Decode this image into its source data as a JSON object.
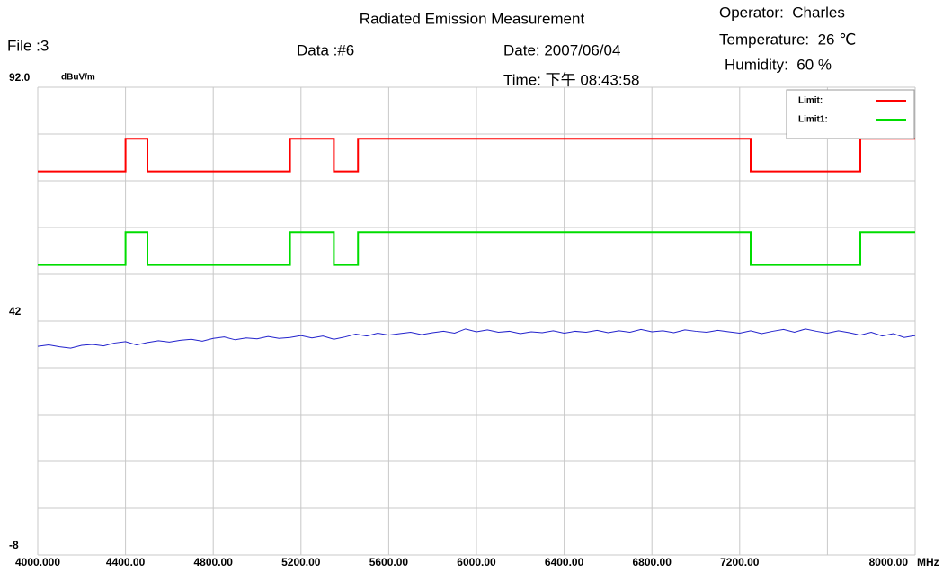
{
  "header": {
    "title": "Radiated Emission Measurement",
    "file": "File :3",
    "data": "Data :#6",
    "date": "Date: 2007/06/04",
    "time": "Time: 下午 08:43:58",
    "operator": "Operator:  Charles",
    "temperature": "Temperature:  26 ℃",
    "humidity": "Humidity:  60 %"
  },
  "chart_data": {
    "type": "line",
    "y_unit": "dBuV/m",
    "x_unit": "MHz",
    "xlim": [
      4000,
      8000
    ],
    "ylim": [
      -8,
      92
    ],
    "grid": true,
    "legend": "upper right",
    "xticks": [
      {
        "value": 4000,
        "label": "4000.000"
      },
      {
        "value": 4400,
        "label": "4400.00"
      },
      {
        "value": 4800,
        "label": "4800.00"
      },
      {
        "value": 5200,
        "label": "5200.00"
      },
      {
        "value": 5600,
        "label": "5600.00"
      },
      {
        "value": 6000,
        "label": "6000.00"
      },
      {
        "value": 6400,
        "label": "6400.00"
      },
      {
        "value": 6800,
        "label": "6800.00"
      },
      {
        "value": 7200,
        "label": "7200.00"
      },
      {
        "value": 7600,
        "label": null
      },
      {
        "value": 8000,
        "label": "8000.00"
      }
    ],
    "yticks": [
      {
        "value": 92,
        "label": "92.0"
      },
      {
        "value": 82,
        "label": null
      },
      {
        "value": 72,
        "label": null
      },
      {
        "value": 62,
        "label": null
      },
      {
        "value": 52,
        "label": null
      },
      42,
      {
        "value": 32,
        "label": null
      },
      {
        "value": 22,
        "label": null
      },
      {
        "value": 12,
        "label": null
      },
      {
        "value": 2,
        "label": null
      },
      -8
    ],
    "series": [
      {
        "name": "Limit:",
        "color": "#ff0000",
        "x": [
          4000,
          4400,
          4400,
          4500,
          4500,
          5150,
          5150,
          5350,
          5350,
          5460,
          5460,
          7250,
          7250,
          7750,
          7750,
          8000
        ],
        "values": [
          74,
          74,
          81,
          81,
          74,
          74,
          81,
          81,
          74,
          74,
          81,
          81,
          74,
          74,
          81,
          81
        ]
      },
      {
        "name": "Limit1:",
        "color": "#00dd00",
        "x": [
          4000,
          4400,
          4400,
          4500,
          4500,
          5150,
          5150,
          5350,
          5350,
          5460,
          5460,
          7250,
          7250,
          7750,
          7750,
          8000
        ],
        "values": [
          54,
          54,
          61,
          61,
          54,
          54,
          61,
          61,
          54,
          54,
          61,
          61,
          54,
          54,
          61,
          61
        ]
      },
      {
        "name": null,
        "color": "#2222cc",
        "x": [
          4000,
          4050,
          4100,
          4150,
          4200,
          4250,
          4300,
          4350,
          4400,
          4450,
          4500,
          4550,
          4600,
          4650,
          4700,
          4750,
          4800,
          4850,
          4900,
          4950,
          5000,
          5050,
          5100,
          5150,
          5200,
          5250,
          5300,
          5350,
          5400,
          5450,
          5500,
          5550,
          5600,
          5650,
          5700,
          5750,
          5800,
          5850,
          5900,
          5950,
          6000,
          6050,
          6100,
          6150,
          6200,
          6250,
          6300,
          6350,
          6400,
          6450,
          6500,
          6550,
          6600,
          6650,
          6700,
          6750,
          6800,
          6850,
          6900,
          6950,
          7000,
          7050,
          7100,
          7150,
          7200,
          7250,
          7300,
          7350,
          7400,
          7450,
          7500,
          7550,
          7600,
          7650,
          7700,
          7750,
          7800,
          7850,
          7900,
          7950,
          8000
        ],
        "values": [
          36.6,
          36.9,
          36.5,
          36.2,
          36.8,
          37.0,
          36.7,
          37.3,
          37.6,
          36.9,
          37.4,
          37.8,
          37.5,
          37.9,
          38.1,
          37.7,
          38.3,
          38.6,
          38.0,
          38.4,
          38.2,
          38.7,
          38.3,
          38.5,
          38.9,
          38.4,
          38.8,
          38.1,
          38.6,
          39.2,
          38.8,
          39.4,
          39.0,
          39.3,
          39.6,
          39.1,
          39.5,
          39.8,
          39.4,
          40.3,
          39.7,
          40.1,
          39.6,
          39.8,
          39.3,
          39.7,
          39.5,
          39.9,
          39.4,
          39.8,
          39.6,
          40.0,
          39.5,
          39.9,
          39.6,
          40.2,
          39.7,
          39.9,
          39.5,
          40.1,
          39.8,
          39.6,
          40.0,
          39.7,
          39.4,
          39.9,
          39.3,
          39.8,
          40.2,
          39.6,
          40.3,
          39.8,
          39.4,
          39.9,
          39.5,
          39.0,
          39.6,
          38.8,
          39.3,
          38.5,
          38.9
        ]
      }
    ]
  }
}
